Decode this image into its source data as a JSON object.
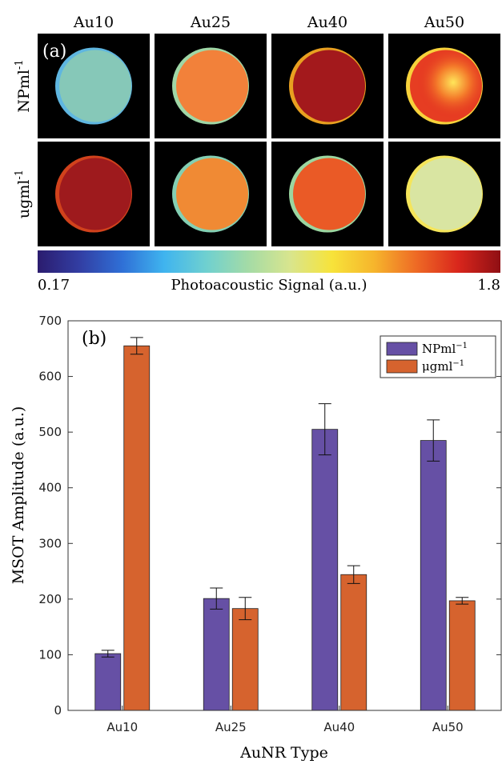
{
  "panel_a": {
    "label": "(a)",
    "columns": [
      "Au10",
      "Au25",
      "Au40",
      "Au50"
    ],
    "rows": [
      {
        "label": "NPml",
        "sup": "-1",
        "wells": [
          {
            "color": "#86c8b8",
            "rim": "#5fb6e0"
          },
          {
            "color": "#f2813a",
            "rim": "#9fd7a6"
          },
          {
            "color": "#a3191c",
            "rim": "#e8a020"
          },
          {
            "color": "#e63d22",
            "rim": "#f7d23b",
            "hot": "#ffd23a"
          }
        ]
      },
      {
        "label": "ugml",
        "sup": "-1",
        "wells": [
          {
            "color": "#9e1a1d",
            "rim": "#d1421c"
          },
          {
            "color": "#f08a34",
            "rim": "#83cfb3"
          },
          {
            "color": "#ea5a26",
            "rim": "#9bd6a0"
          },
          {
            "color": "#d9e5a2",
            "rim": "#f5e55a"
          }
        ]
      }
    ],
    "colorbar": {
      "min_label": "0.17",
      "max_label": "1.8",
      "title": "Photoacoustic Signal (a.u.)",
      "stops": [
        "#2b1c6e",
        "#323ea3",
        "#2f6fd6",
        "#3fb4ef",
        "#6fd0d0",
        "#a4dba6",
        "#d8e58e",
        "#f7e33a",
        "#f6b52c",
        "#ee6a25",
        "#d9261c",
        "#8f0f14"
      ]
    }
  },
  "chart_data": {
    "type": "bar",
    "panel_label": "(b)",
    "categories": [
      "Au10",
      "Au25",
      "Au40",
      "Au50"
    ],
    "series": [
      {
        "name": "NPml",
        "sup": "−1",
        "color": "#6650a5",
        "values": [
          102,
          201,
          505,
          485
        ],
        "errors": [
          6,
          19,
          46,
          37
        ]
      },
      {
        "name": "μgml",
        "sup": "−1",
        "color": "#d6632e",
        "values": [
          655,
          183,
          244,
          197
        ],
        "errors": [
          15,
          20,
          16,
          6
        ]
      }
    ],
    "xlabel": "AuNR Type",
    "ylabel": "MSOT Amplitude (a.u.)",
    "ylim": [
      0,
      700
    ],
    "yticks": [
      0,
      100,
      200,
      300,
      400,
      500,
      600,
      700
    ],
    "legend_position": "top-right"
  }
}
